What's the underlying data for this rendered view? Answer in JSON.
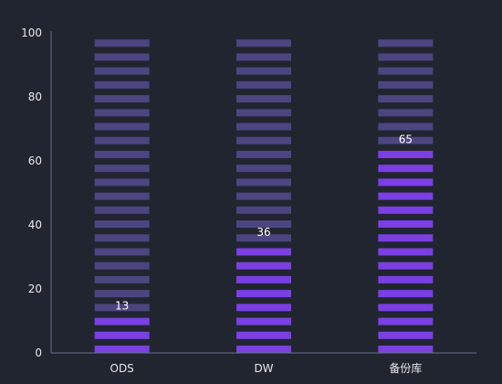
{
  "chart_data": {
    "type": "bar",
    "style": "segmented-pictorial",
    "categories": [
      "ODS",
      "DW",
      "备份库"
    ],
    "values": [
      13,
      36,
      65
    ],
    "ylim": [
      0,
      100
    ],
    "yticks": [
      0,
      20,
      40,
      60,
      80,
      100
    ],
    "grid": false,
    "legend": "none",
    "colors": {
      "filled": "#7b3fe4",
      "empty": "#4b4680",
      "axis": "#6b6f8a",
      "text": "#e8e8e8",
      "background": "#212530"
    }
  }
}
